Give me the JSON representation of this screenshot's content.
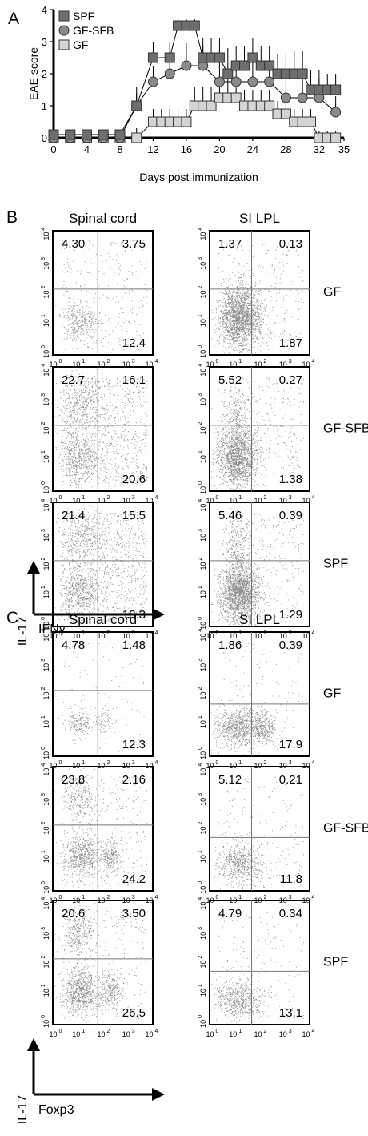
{
  "panel_labels": {
    "a": "A",
    "b": "B",
    "c": "C"
  },
  "chart_data": [
    {
      "type": "line",
      "panel": "A",
      "xlabel": "Days post immunization",
      "ylabel": "EAE score",
      "xlim": [
        0,
        35
      ],
      "ylim": [
        0,
        4
      ],
      "xticks": [
        0,
        4,
        8,
        12,
        16,
        20,
        24,
        28,
        32,
        35
      ],
      "yticks": [
        0,
        1,
        2,
        3,
        4
      ],
      "legend_position": "top-left",
      "series": [
        {
          "name": "SPF",
          "marker": "square",
          "color": "#6e6e6e",
          "x": [
            0,
            2,
            4,
            6,
            8,
            10,
            12,
            14,
            15,
            16,
            17,
            18,
            19,
            20,
            21,
            22,
            23,
            24,
            25,
            26,
            27,
            28,
            29,
            30,
            31,
            32,
            33,
            34
          ],
          "y": [
            0.1,
            0.1,
            0.1,
            0.1,
            0.1,
            1.0,
            2.5,
            2.5,
            3.5,
            3.5,
            3.5,
            2.5,
            2.5,
            2.5,
            2.0,
            2.25,
            2.25,
            2.5,
            2.25,
            2.25,
            2.0,
            2.0,
            2.0,
            2.0,
            1.5,
            1.5,
            1.5,
            1.5
          ],
          "err": [
            0,
            0,
            0,
            0,
            0,
            0.4,
            0.5,
            0.5,
            0.2,
            0.2,
            0.2,
            0.6,
            0.6,
            0.6,
            0.8,
            0.6,
            0.6,
            0.6,
            0.6,
            0.6,
            0.6,
            0.6,
            0.7,
            0.7,
            0.6,
            0.6,
            0.5,
            0.5
          ]
        },
        {
          "name": "GF-SFB",
          "marker": "circle",
          "color": "#8a8a8a",
          "x": [
            0,
            2,
            4,
            6,
            8,
            10,
            12,
            14,
            16,
            18,
            20,
            22,
            24,
            26,
            28,
            30,
            32,
            34
          ],
          "y": [
            0.0,
            0.0,
            0.0,
            0.0,
            0.0,
            1.0,
            1.75,
            2.0,
            2.25,
            2.25,
            1.75,
            1.75,
            1.75,
            1.75,
            1.25,
            1.25,
            1.25,
            0.8
          ],
          "err": [
            0,
            0,
            0,
            0,
            0,
            0.6,
            0.5,
            0.5,
            0.7,
            0.6,
            0.6,
            0.6,
            0.6,
            0.6,
            0.6,
            0.6,
            0.6,
            0.5
          ]
        },
        {
          "name": "GF",
          "marker": "square",
          "color": "#d4d4d4",
          "x": [
            0,
            2,
            4,
            6,
            8,
            10,
            12,
            13,
            14,
            15,
            16,
            17,
            18,
            19,
            20,
            21,
            22,
            23,
            24,
            25,
            26,
            27,
            28,
            29,
            30,
            31,
            32,
            33,
            34
          ],
          "y": [
            0.0,
            0.0,
            0.0,
            0.0,
            0.0,
            0.0,
            0.5,
            0.5,
            0.5,
            0.5,
            0.5,
            1.0,
            1.0,
            1.0,
            1.25,
            1.25,
            1.25,
            1.0,
            1.0,
            1.0,
            1.0,
            0.75,
            0.75,
            0.5,
            0.5,
            0.5,
            0.0,
            0.0,
            0.0
          ],
          "err": [
            0,
            0,
            0,
            0,
            0,
            0.3,
            0.4,
            0.4,
            0.4,
            0.4,
            0.4,
            0.6,
            0.6,
            0.6,
            0.6,
            0.6,
            0.6,
            0.5,
            0.5,
            0.5,
            0.5,
            0.4,
            0.4,
            0.4,
            0.4,
            0.4,
            0.2,
            0.2,
            0.2
          ]
        }
      ]
    },
    {
      "type": "scatter",
      "panel": "B",
      "columns": [
        "Spinal cord",
        "SI LPL"
      ],
      "rows": [
        "GF",
        "GF-SFB",
        "SPF"
      ],
      "xlabel": "IFNγ",
      "ylabel": "IL-17",
      "axis_tick_labels": [
        "0",
        "1",
        "2",
        "3",
        "4"
      ],
      "plots": [
        {
          "column": "Spinal cord",
          "row": "GF",
          "quadrants": {
            "top_left": "4.30",
            "top_right": "3.75",
            "bottom_right": "12.4"
          }
        },
        {
          "column": "SI LPL",
          "row": "GF",
          "quadrants": {
            "top_left": "1.37",
            "top_right": "0.13",
            "bottom_right": "1.87"
          }
        },
        {
          "column": "Spinal cord",
          "row": "GF-SFB",
          "quadrants": {
            "top_left": "22.7",
            "top_right": "16.1",
            "bottom_right": "20.6"
          }
        },
        {
          "column": "SI LPL",
          "row": "GF-SFB",
          "quadrants": {
            "top_left": "5.52",
            "top_right": "0.27",
            "bottom_right": "1.38"
          }
        },
        {
          "column": "Spinal cord",
          "row": "SPF",
          "quadrants": {
            "top_left": "21.4",
            "top_right": "15.5",
            "bottom_right": "18.3"
          }
        },
        {
          "column": "SI LPL",
          "row": "SPF",
          "quadrants": {
            "top_left": "5.46",
            "top_right": "0.39",
            "bottom_right": "1.29"
          }
        }
      ]
    },
    {
      "type": "scatter",
      "panel": "C",
      "columns": [
        "Spinal cord",
        "SI LPL"
      ],
      "rows": [
        "GF",
        "GF-SFB",
        "SPF"
      ],
      "xlabel": "Foxp3",
      "ylabel": "IL-17",
      "axis_tick_labels": [
        "0",
        "1",
        "2",
        "3",
        "4"
      ],
      "plots": [
        {
          "column": "Spinal cord",
          "row": "GF",
          "quadrants": {
            "top_left": "4.78",
            "top_right": "1.48",
            "bottom_right": "12.3"
          }
        },
        {
          "column": "SI LPL",
          "row": "GF",
          "quadrants": {
            "top_left": "1.86",
            "top_right": "0.39",
            "bottom_right": "17.9"
          }
        },
        {
          "column": "Spinal cord",
          "row": "GF-SFB",
          "quadrants": {
            "top_left": "23.8",
            "top_right": "2.16",
            "bottom_right": "24.2"
          }
        },
        {
          "column": "SI LPL",
          "row": "GF-SFB",
          "quadrants": {
            "top_left": "5.12",
            "top_right": "0.21",
            "bottom_right": "11.8"
          }
        },
        {
          "column": "Spinal cord",
          "row": "SPF",
          "quadrants": {
            "top_left": "20.6",
            "top_right": "3.50",
            "bottom_right": "26.5"
          }
        },
        {
          "column": "SI LPL",
          "row": "SPF",
          "quadrants": {
            "top_left": "4.79",
            "top_right": "0.34",
            "bottom_right": "13.1"
          }
        }
      ]
    }
  ]
}
